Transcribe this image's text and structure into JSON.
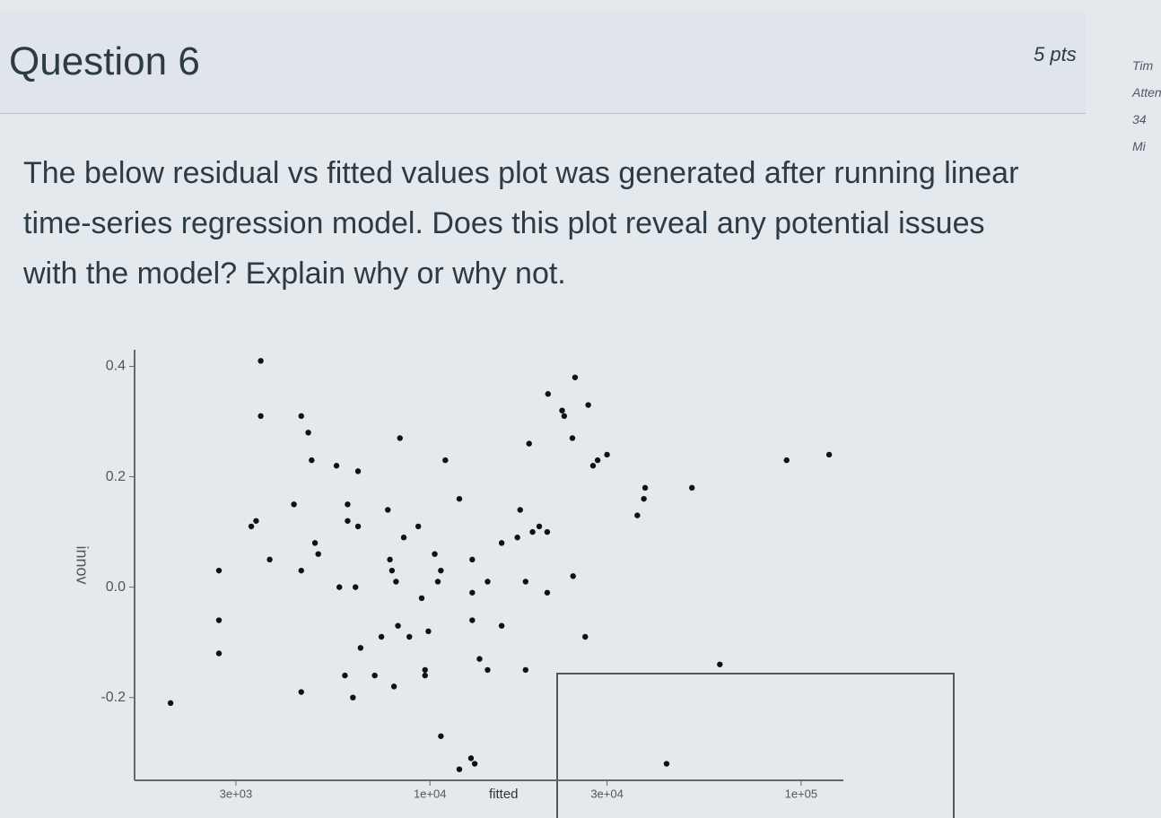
{
  "header": {
    "title": "Question 6",
    "points": "5 pts"
  },
  "sidebar": [
    "Tim",
    "Atten",
    "34 Mi"
  ],
  "question": {
    "text": "The below residual vs fitted values plot was generated after running linear time-series regression model. Does this plot reveal any potential issues with the model? Explain why or why not."
  },
  "chart_data": {
    "type": "scatter",
    "x_label": "fitted",
    "y_label": "innov",
    "x_scale": "log",
    "color": "#111111",
    "xlim": [
      1600,
      130000
    ],
    "ylim": [
      -0.35,
      0.43
    ],
    "xticks": [
      {
        "value": 3000,
        "label": "3e+03"
      },
      {
        "value": 10000,
        "label": "1e+04"
      },
      {
        "value": 30000,
        "label": "3e+04"
      },
      {
        "value": 100000,
        "label": "1e+05"
      }
    ],
    "yticks": [
      -0.2,
      {
        "value": 0,
        "label": "0.0"
      },
      0.2,
      0.4
    ],
    "x": [
      2000,
      2700,
      2700,
      2700,
      3300,
      3400,
      3500,
      3500,
      3700,
      4300,
      4500,
      4500,
      4500,
      4700,
      4800,
      4900,
      5000,
      5600,
      6400,
      5700,
      6300,
      6000,
      6000,
      6400,
      5900,
      6200,
      6500,
      7100,
      7400,
      8000,
      7700,
      7800,
      7900,
      8100,
      8200,
      8300,
      8500,
      8800,
      9300,
      9500,
      9700,
      9700,
      9900,
      10300,
      10500,
      10700,
      10700,
      11000,
      12000,
      12000,
      12900,
      13200,
      13000,
      13000,
      13000,
      13600,
      14300,
      14300,
      15600,
      15600,
      17200,
      17500,
      18100,
      18100,
      18500,
      18900,
      19700,
      20700,
      20700,
      20800,
      22700,
      23000,
      24200,
      24600,
      26700,
      24300,
      26200,
      27500,
      28300,
      30000,
      36200,
      37700,
      38000,
      43400,
      50800,
      60400,
      91400,
      119000
    ],
    "values": [
      -0.21,
      0.03,
      -0.06,
      -0.12,
      0.11,
      0.12,
      0.41,
      0.31,
      0.05,
      0.15,
      0.03,
      -0.19,
      0.31,
      0.28,
      0.23,
      0.08,
      0.06,
      0.22,
      0.21,
      0.0,
      0.0,
      0.15,
      0.12,
      0.11,
      -0.16,
      -0.2,
      -0.11,
      -0.16,
      -0.09,
      -0.18,
      0.14,
      0.05,
      0.03,
      0.01,
      -0.07,
      0.27,
      0.09,
      -0.09,
      0.11,
      -0.02,
      -0.15,
      -0.16,
      -0.08,
      0.06,
      0.01,
      0.03,
      -0.27,
      0.23,
      0.16,
      -0.33,
      -0.31,
      -0.32,
      0.05,
      -0.01,
      -0.06,
      -0.13,
      -0.15,
      0.01,
      0.08,
      -0.07,
      0.09,
      0.14,
      0.01,
      -0.15,
      0.26,
      0.1,
      0.11,
      0.1,
      -0.01,
      0.35,
      0.32,
      0.31,
      0.27,
      0.38,
      0.33,
      0.02,
      -0.09,
      0.22,
      0.23,
      0.24,
      0.13,
      0.16,
      0.18,
      -0.32,
      0.18,
      -0.14,
      0.23,
      0.24
    ]
  }
}
